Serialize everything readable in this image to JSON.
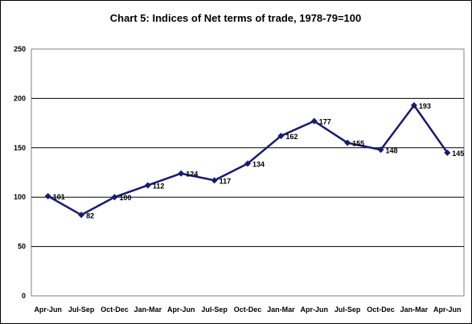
{
  "chart_data": {
    "type": "line",
    "title": "Chart 5: Indices of Net terms of trade, 1978-79=100",
    "categories": [
      "Apr-Jun",
      "Jul-Sep",
      "Oct-Dec",
      "Jan-Mar",
      "Apr-Jun",
      "Jul-Sep",
      "Oct-Dec",
      "Jan-Mar",
      "Apr-Jun",
      "Jul-Sep",
      "Oct-Dec",
      "Jan-Mar",
      "Apr-Jun"
    ],
    "series": [
      {
        "values": [
          101,
          82,
          100,
          112,
          124,
          117,
          134,
          162,
          177,
          155,
          148,
          193,
          145
        ]
      }
    ],
    "data_labels": [
      "101",
      "82",
      "100",
      "112",
      "124",
      "117",
      "134",
      "162",
      "177",
      "155",
      "148",
      "193",
      "145"
    ],
    "ylim": [
      0,
      250
    ],
    "yticks": [
      0,
      50,
      100,
      150,
      200,
      250
    ],
    "xlabel": "",
    "ylabel": "",
    "grid": true,
    "legend": "none",
    "line_color": "#1a1a6e",
    "marker": "diamond"
  }
}
